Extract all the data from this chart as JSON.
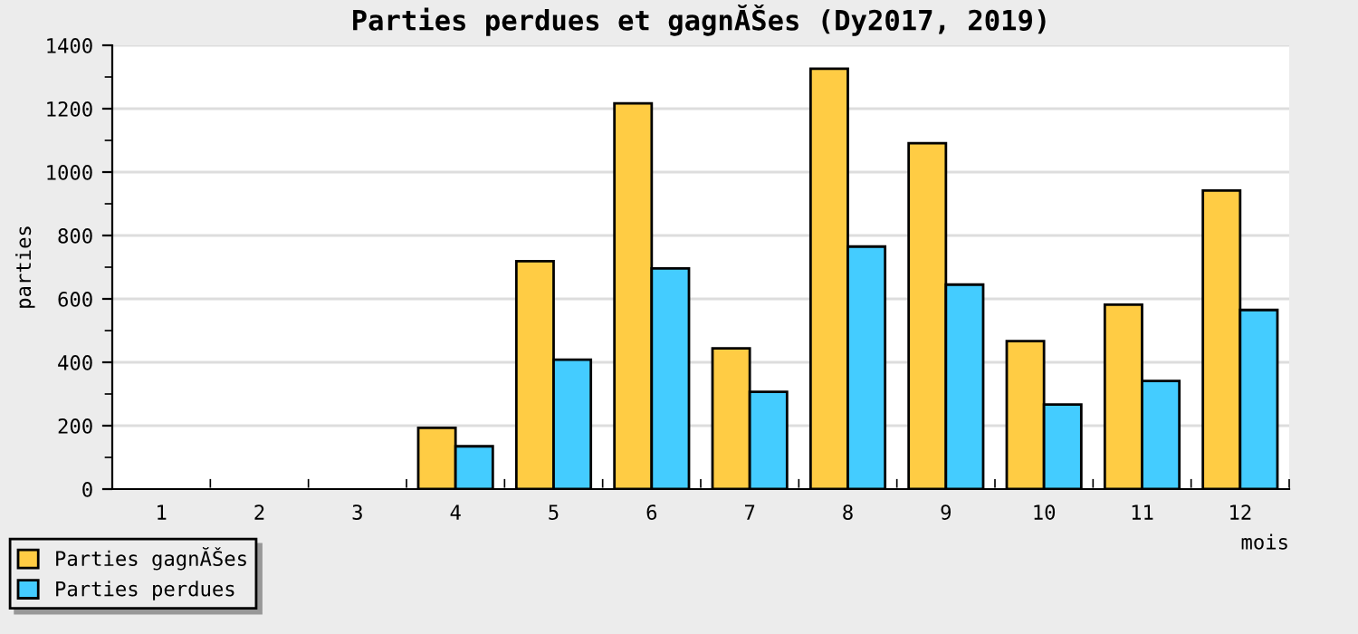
{
  "chart_data": {
    "type": "bar",
    "title": "Parties perdues et gagnĂŠes (Dy2017, 2019)",
    "xlabel": "mois",
    "ylabel": "parties",
    "categories": [
      "1",
      "2",
      "3",
      "4",
      "5",
      "6",
      "7",
      "8",
      "9",
      "10",
      "11",
      "12"
    ],
    "series": [
      {
        "name": "Parties gagnĂŠes",
        "color": "#ffcc44",
        "values": [
          null,
          null,
          null,
          193,
          719,
          1217,
          444,
          1326,
          1091,
          467,
          582,
          942
        ]
      },
      {
        "name": "Parties perdues",
        "color": "#44ccff",
        "values": [
          null,
          null,
          null,
          135,
          408,
          696,
          307,
          765,
          645,
          267,
          341,
          565
        ]
      }
    ],
    "ylim": [
      0,
      1400
    ],
    "yticks": [
      0,
      200,
      400,
      600,
      800,
      1000,
      1200,
      1400
    ],
    "grid": "y",
    "legend": "bottom left"
  }
}
